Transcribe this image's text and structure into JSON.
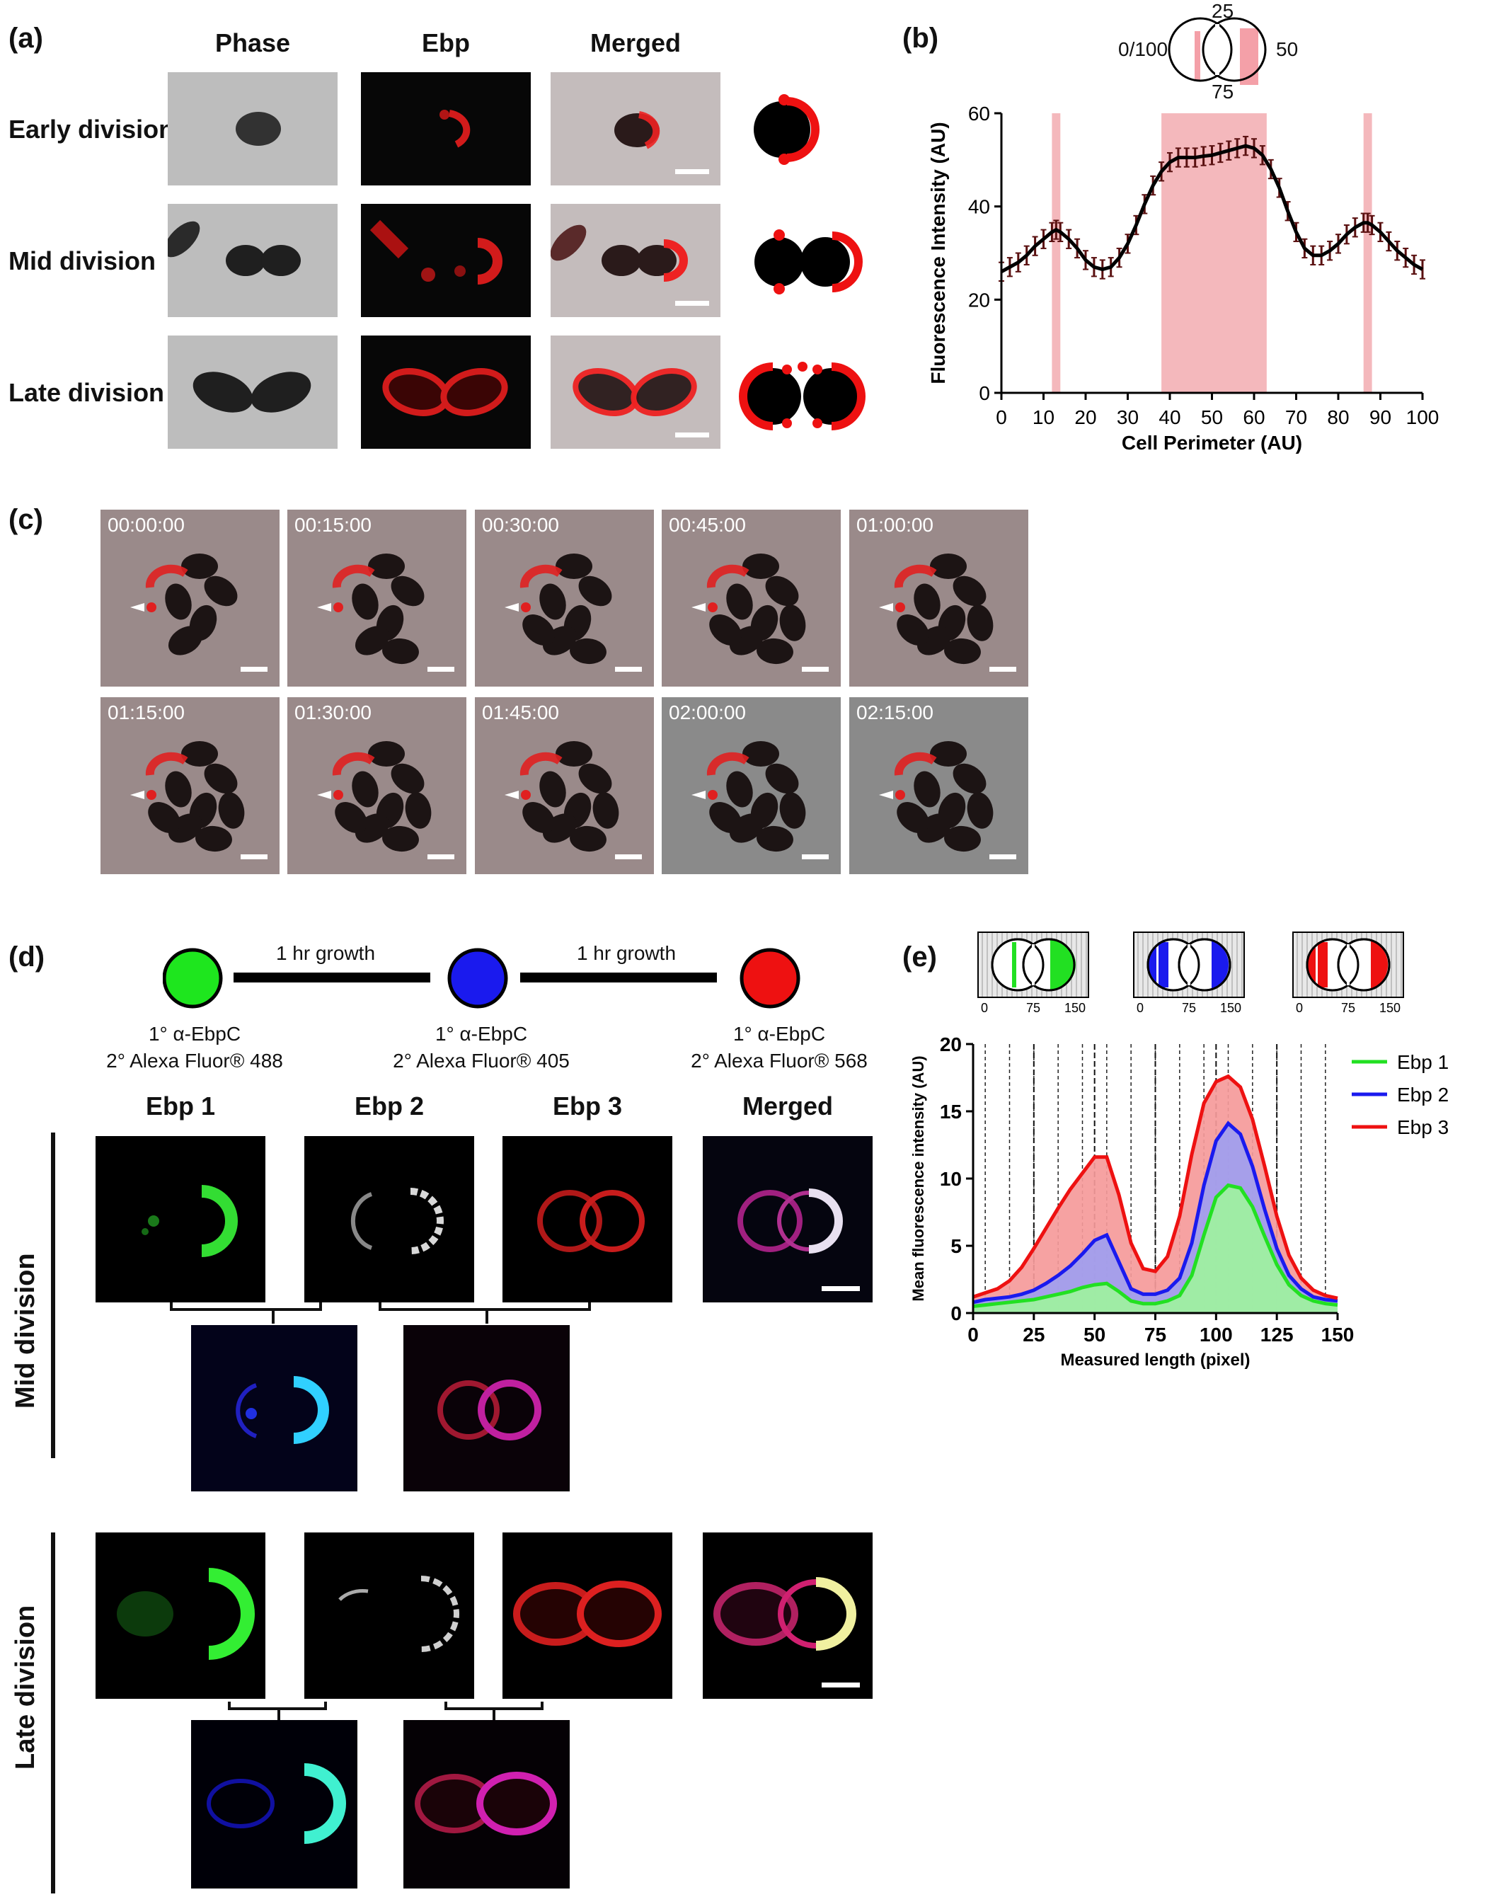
{
  "panels": {
    "a": {
      "label": "(a)",
      "columns": [
        "Phase",
        "Ebp",
        "Merged"
      ],
      "rows": [
        "Early division",
        "Mid division",
        "Late division"
      ]
    },
    "b": {
      "label": "(b)",
      "inset_ticks": [
        "25",
        "0/100",
        "50",
        "75"
      ]
    },
    "c": {
      "label": "(c)",
      "timestamps": [
        "00:00:00",
        "00:15:00",
        "00:30:00",
        "00:45:00",
        "01:00:00",
        "01:15:00",
        "01:30:00",
        "01:45:00",
        "02:00:00",
        "02:15:00"
      ]
    },
    "d": {
      "label": "(d)",
      "growth_labels": [
        "1 hr growth",
        "1 hr growth"
      ],
      "step1": [
        "1° α-EbpC",
        "2° Alexa Fluor® 488"
      ],
      "step2": [
        "1° α-EbpC",
        "2° Alexa Fluor® 405"
      ],
      "step3": [
        "1° α-EbpC",
        "2° Alexa Fluor® 568"
      ],
      "circle_colors": [
        "#1ee61e",
        "#1a1aee",
        "#ee1111"
      ],
      "columns": [
        "Ebp 1",
        "Ebp 2",
        "Ebp 3",
        "Merged"
      ],
      "rows": [
        "Mid division",
        "Late division"
      ]
    },
    "e": {
      "label": "(e)",
      "inset_ticks": [
        "0",
        "75",
        "150"
      ]
    }
  },
  "chart_data": [
    {
      "type": "line",
      "panel": "b",
      "xlabel": "Cell Perimeter (AU)",
      "ylabel": "Fluorescence Intensity (AU)",
      "xlim": [
        0,
        100
      ],
      "ylim": [
        0,
        60
      ],
      "xticks": [
        "0",
        "10",
        "20",
        "30",
        "40",
        "50",
        "60",
        "70",
        "80",
        "90",
        "100"
      ],
      "yticks": [
        "0",
        "20",
        "40",
        "60"
      ],
      "shaded_regions": [
        [
          12,
          14
        ],
        [
          38,
          63
        ],
        [
          86,
          88
        ]
      ],
      "shade_color": "#f4b8bc",
      "line_color": "#000000",
      "error_color": "#5a1010",
      "x": [
        0,
        2,
        4,
        6,
        8,
        10,
        12,
        13,
        14,
        16,
        18,
        20,
        22,
        24,
        26,
        28,
        30,
        32,
        34,
        36,
        38,
        40,
        42,
        44,
        46,
        48,
        50,
        52,
        54,
        56,
        58,
        60,
        62,
        64,
        66,
        68,
        70,
        72,
        74,
        76,
        78,
        80,
        82,
        84,
        86,
        87,
        88,
        90,
        92,
        94,
        96,
        98,
        100
      ],
      "y": [
        26,
        27,
        28,
        29.5,
        31.5,
        33,
        34.5,
        35,
        34.5,
        33,
        31,
        28.5,
        27,
        26.5,
        27,
        29,
        32,
        36,
        40.5,
        44.5,
        47.5,
        49.5,
        50.5,
        50.5,
        50.5,
        50.8,
        51,
        51.5,
        52,
        52.5,
        53,
        52.5,
        51,
        48,
        44,
        39,
        34.5,
        31,
        29.5,
        29.5,
        30.5,
        32,
        34,
        35.5,
        36.5,
        36.5,
        36,
        34.5,
        32.5,
        30.5,
        29,
        27.5,
        26.5
      ],
      "error": 2
    },
    {
      "type": "area",
      "panel": "e",
      "xlabel": "Measured length (pixel)",
      "ylabel": "Mean fluorescence intensity (AU)",
      "xlim": [
        0,
        150
      ],
      "ylim": [
        0,
        20
      ],
      "xticks": [
        "0",
        "25",
        "50",
        "75",
        "100",
        "125",
        "150"
      ],
      "yticks": [
        "0",
        "5",
        "10",
        "15",
        "20"
      ],
      "legend_position": "right",
      "x": [
        0,
        5,
        10,
        15,
        20,
        25,
        30,
        35,
        40,
        45,
        50,
        55,
        60,
        65,
        70,
        75,
        80,
        85,
        90,
        95,
        100,
        105,
        110,
        115,
        120,
        125,
        130,
        135,
        140,
        145,
        150
      ],
      "series": [
        {
          "name": "Ebp 1",
          "color": "#22e022",
          "fill": "#9ef29e",
          "values": [
            0.5,
            0.6,
            0.7,
            0.8,
            0.9,
            1.0,
            1.2,
            1.4,
            1.6,
            1.9,
            2.1,
            2.2,
            1.6,
            0.9,
            0.7,
            0.7,
            0.9,
            1.3,
            2.8,
            5.8,
            8.6,
            9.5,
            9.3,
            7.9,
            5.7,
            3.6,
            2.1,
            1.3,
            0.9,
            0.7,
            0.6
          ]
        },
        {
          "name": "Ebp 2",
          "color": "#1a1aee",
          "fill": "#9e9ef0",
          "values": [
            0.8,
            1.0,
            1.1,
            1.2,
            1.4,
            1.7,
            2.2,
            2.8,
            3.5,
            4.4,
            5.4,
            5.8,
            3.8,
            1.8,
            1.4,
            1.4,
            1.7,
            2.6,
            5.2,
            9.5,
            12.8,
            14.1,
            13.3,
            10.9,
            7.7,
            4.8,
            2.8,
            1.8,
            1.2,
            1.0,
            0.9
          ]
        },
        {
          "name": "Ebp 3",
          "color": "#ee1111",
          "fill": "#f59a9a",
          "values": [
            1.2,
            1.5,
            1.8,
            2.4,
            3.4,
            4.8,
            6.3,
            7.8,
            9.2,
            10.4,
            11.6,
            11.6,
            8.8,
            5.2,
            3.3,
            3.1,
            4.2,
            7.2,
            11.8,
            15.6,
            17.2,
            17.6,
            16.8,
            14.4,
            10.9,
            7.2,
            4.3,
            2.6,
            1.7,
            1.3,
            1.1
          ]
        }
      ]
    }
  ]
}
